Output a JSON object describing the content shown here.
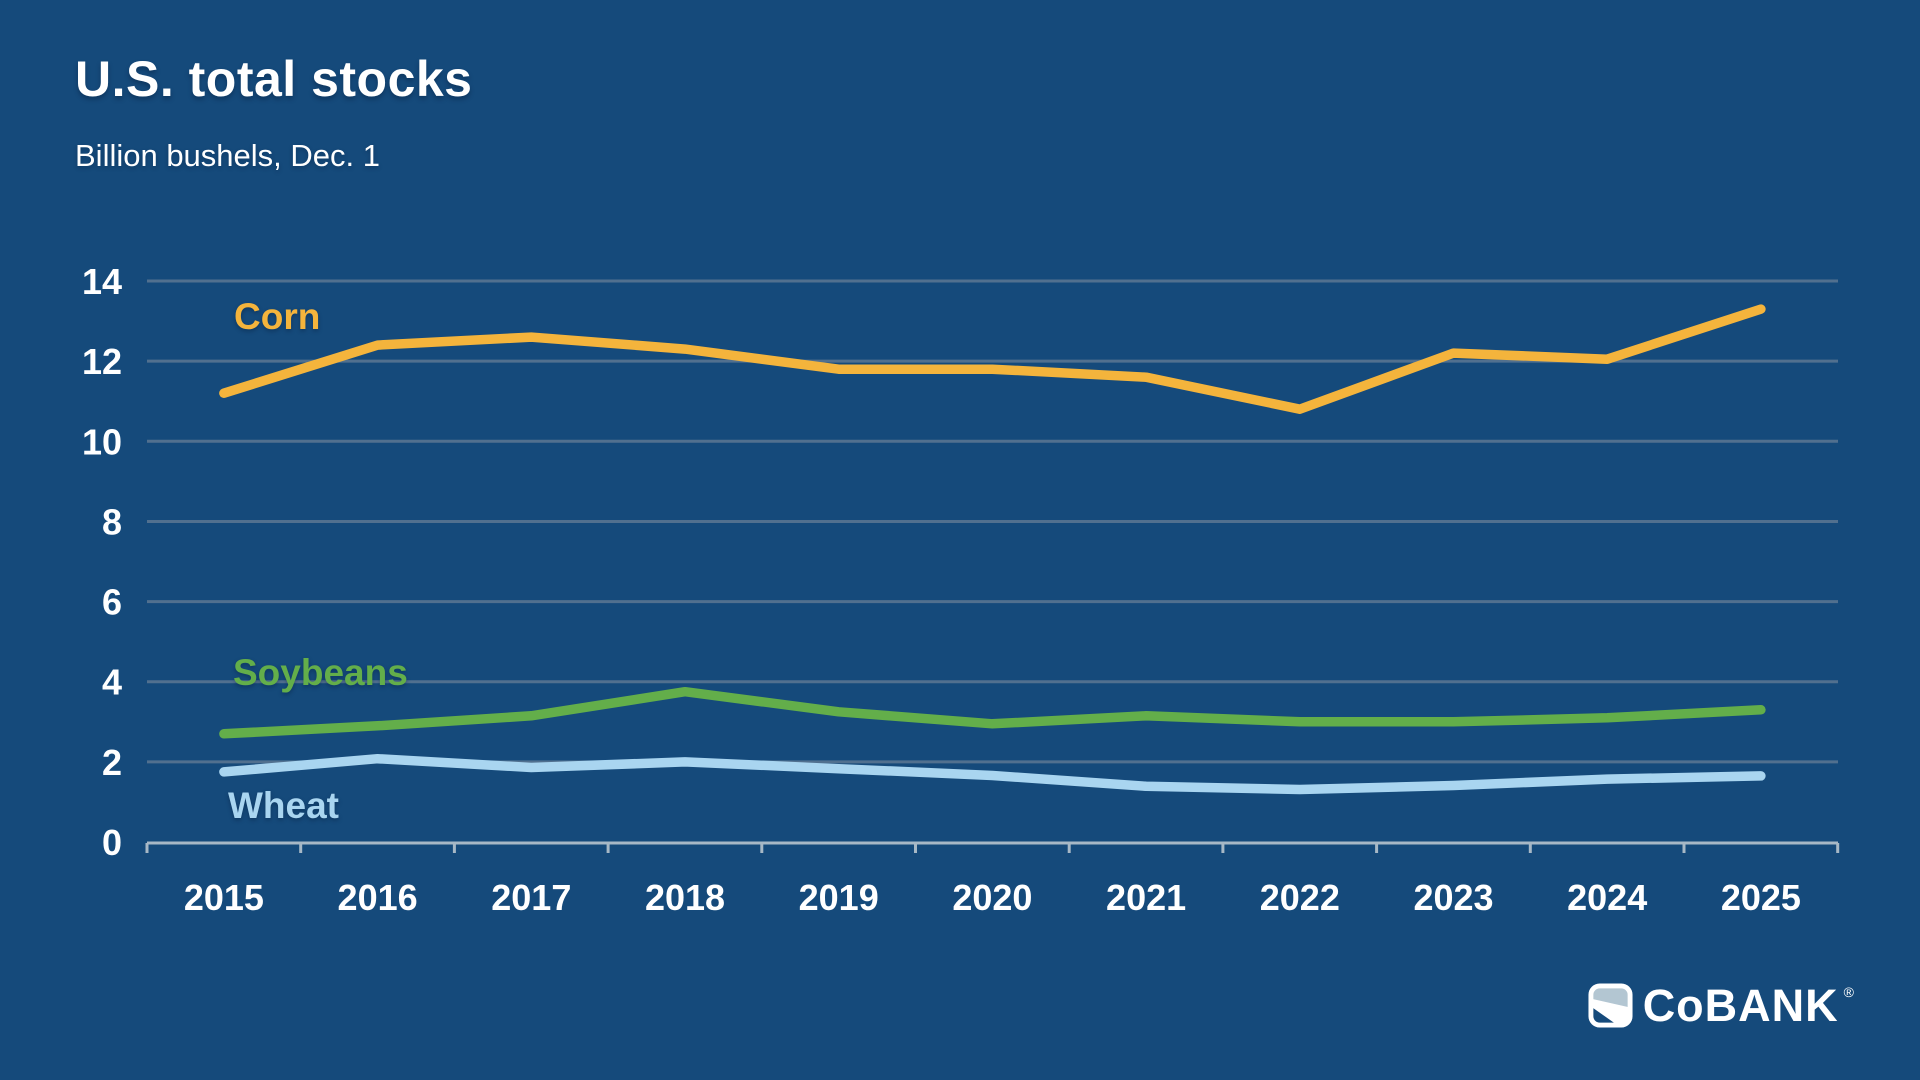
{
  "header": {
    "title": "U.S. total stocks",
    "subtitle": "Billion bushels, Dec. 1"
  },
  "logo": {
    "text": "CoBANK",
    "registered": "®"
  },
  "colors": {
    "background": "#154A7B",
    "corn": "#F4B43C",
    "soybeans": "#63AE4A",
    "wheat": "#A9D5F0",
    "gridline": "#51708F",
    "axis": "#A7B8C6",
    "text": "#FFFFFF",
    "logo_mark_fill": "#B3C6D2"
  },
  "chart_data": {
    "type": "line",
    "title": "U.S. total stocks",
    "subtitle": "Billion bushels, Dec. 1",
    "xlabel": "",
    "ylabel": "Billion bushels",
    "x": [
      2015,
      2016,
      2017,
      2018,
      2019,
      2020,
      2021,
      2022,
      2023,
      2024,
      2025
    ],
    "series": [
      {
        "name": "Corn",
        "color_key": "corn",
        "values": [
          11.2,
          12.4,
          12.6,
          12.3,
          11.8,
          11.8,
          11.6,
          10.8,
          12.2,
          12.05,
          13.3
        ]
      },
      {
        "name": "Soybeans",
        "color_key": "soybeans",
        "values": [
          2.7,
          2.9,
          3.15,
          3.75,
          3.25,
          2.95,
          3.15,
          3.0,
          3.0,
          3.1,
          3.3
        ]
      },
      {
        "name": "Wheat",
        "color_key": "wheat",
        "values": [
          1.75,
          2.08,
          1.86,
          2.0,
          1.83,
          1.66,
          1.39,
          1.31,
          1.41,
          1.57,
          1.65
        ]
      }
    ],
    "ylim": [
      0,
      14
    ],
    "yticks": [
      0,
      2,
      4,
      6,
      8,
      10,
      12,
      14
    ],
    "grid": true,
    "legend_position": "inline-labels"
  }
}
